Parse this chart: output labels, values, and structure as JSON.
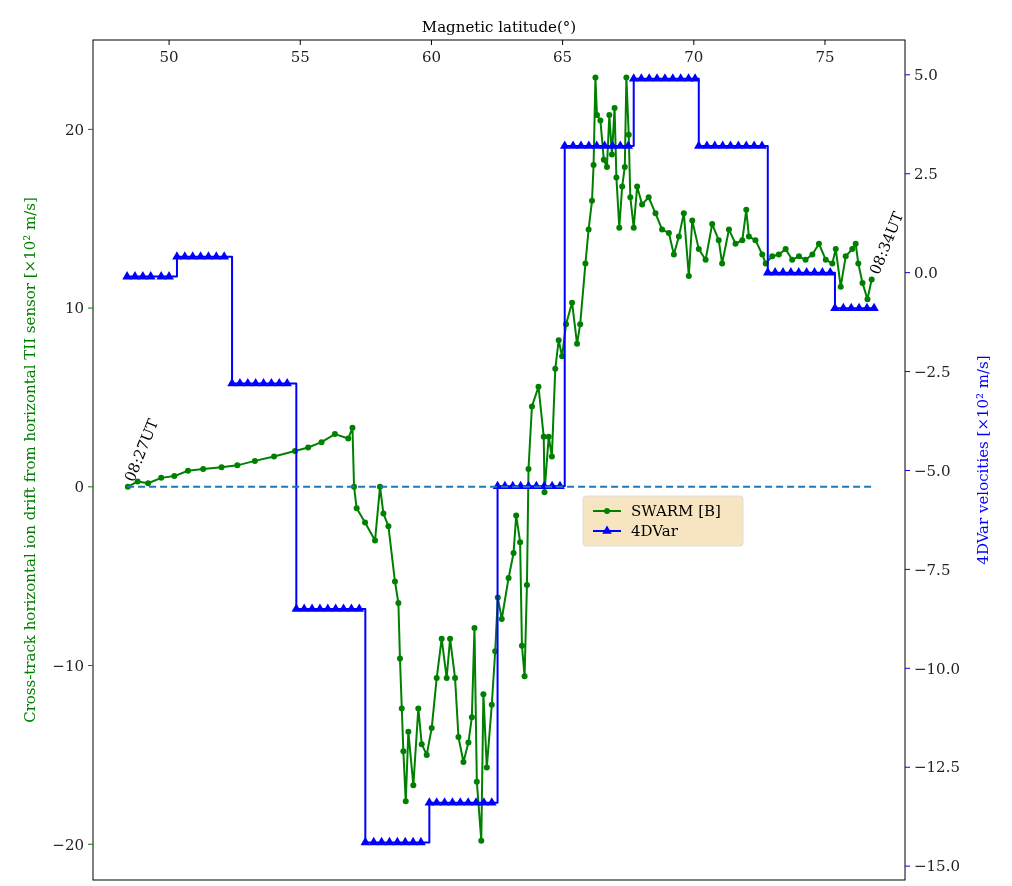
{
  "chart_data": {
    "type": "line",
    "xlabel": "Magnetic latitude(°)",
    "ylabel": "Cross-track horizontal ion drift from horizontal TII sensor [×10² m/s]",
    "y2label": "4DVar velocities [×10² m/s]",
    "xlim": [
      47.1,
      78.05
    ],
    "xticks": [
      50,
      55,
      60,
      65,
      70,
      75
    ],
    "ylim": [
      -22,
      25
    ],
    "yticks": [
      {
        "value": -20,
        "label": "−20"
      },
      {
        "value": -10,
        "label": "−10"
      },
      0,
      10,
      20
    ],
    "y2lim": [
      -15.35,
      5.88
    ],
    "y2ticks": [
      {
        "value": -15,
        "label": "−15.0"
      },
      {
        "value": -12.5,
        "label": "−12.5"
      },
      {
        "value": -10,
        "label": "−10.0"
      },
      {
        "value": -7.5,
        "label": "−7.5"
      },
      {
        "value": -5,
        "label": "−5.0"
      },
      {
        "value": -2.5,
        "label": "−2.5"
      },
      {
        "value": 0,
        "label": "0.0"
      },
      2.5,
      {
        "value": 5,
        "label": "5.0"
      }
    ],
    "legend": "center",
    "annotations": [
      {
        "text": "08:27UT",
        "x": 48.5,
        "y": 0
      },
      {
        "text": "08:34UT",
        "x": 76.9,
        "y": 11.6
      }
    ],
    "series": [
      {
        "name": "SWARM [B]",
        "color": "#008000",
        "marker": "circle",
        "x": [
          48.43,
          48.8,
          49.2,
          49.7,
          50.2,
          50.72,
          51.3,
          52.0,
          52.6,
          53.27,
          54.0,
          54.8,
          55.3,
          55.81,
          56.32,
          56.83,
          56.99,
          57.05,
          57.15,
          57.47,
          57.85,
          58.04,
          58.17,
          58.36,
          58.61,
          58.74,
          58.8,
          58.87,
          58.93,
          59.02,
          59.12,
          59.31,
          59.5,
          59.63,
          59.82,
          60.01,
          60.2,
          60.39,
          60.58,
          60.71,
          60.9,
          61.03,
          61.22,
          61.41,
          61.54,
          61.64,
          61.73,
          61.9,
          61.98,
          62.11,
          62.3,
          62.43,
          62.53,
          62.68,
          62.94,
          63.13,
          63.23,
          63.38,
          63.45,
          63.55,
          63.64,
          63.7,
          63.83,
          64.08,
          64.28,
          64.31,
          64.47,
          64.59,
          64.72,
          64.85,
          64.98,
          65.13,
          65.36,
          65.55,
          65.67,
          65.87,
          65.99,
          66.12,
          66.18,
          66.25,
          66.31,
          66.44,
          66.57,
          66.69,
          66.78,
          66.88,
          66.98,
          67.05,
          67.16,
          67.27,
          67.37,
          67.43,
          67.52,
          67.58,
          67.71,
          67.84,
          68.03,
          68.28,
          68.54,
          68.79,
          69.05,
          69.24,
          69.43,
          69.62,
          69.81,
          69.94,
          70.19,
          70.45,
          70.7,
          70.95,
          71.08,
          71.34,
          71.59,
          71.85,
          72.0,
          72.1,
          72.35,
          72.61,
          72.74,
          72.99,
          73.24,
          73.5,
          73.75,
          74.01,
          74.26,
          74.52,
          74.77,
          75.03,
          75.28,
          75.41,
          75.6,
          75.79,
          76.04,
          76.17,
          76.27,
          76.43,
          76.62,
          76.78
        ],
        "values": [
          0.0,
          0.3,
          0.2,
          0.5,
          0.6,
          0.9,
          1.0,
          1.1,
          1.2,
          1.45,
          1.7,
          2.0,
          2.2,
          2.5,
          2.95,
          2.7,
          3.3,
          0.0,
          -1.2,
          -2.0,
          -3.0,
          0.0,
          -1.5,
          -2.2,
          -5.3,
          -6.5,
          -9.6,
          -12.4,
          -14.8,
          -17.6,
          -13.7,
          -16.7,
          -12.4,
          -14.4,
          -15.0,
          -13.5,
          -10.7,
          -8.5,
          -10.7,
          -8.5,
          -10.7,
          -14.0,
          -15.4,
          -14.3,
          -12.9,
          -7.9,
          -16.5,
          -19.8,
          -11.6,
          -15.7,
          -12.2,
          -9.2,
          -6.2,
          -7.4,
          -5.1,
          -3.7,
          -1.6,
          -3.1,
          -8.9,
          -10.6,
          -5.5,
          1.0,
          4.5,
          5.6,
          2.8,
          -0.3,
          2.8,
          1.7,
          6.6,
          8.2,
          7.3,
          9.1,
          10.3,
          8.0,
          9.1,
          12.5,
          14.4,
          16.0,
          18.0,
          22.9,
          20.8,
          20.5,
          18.3,
          17.9,
          20.8,
          18.6,
          21.2,
          17.3,
          14.5,
          16.8,
          17.9,
          22.9,
          19.7,
          16.2,
          14.5,
          16.8,
          15.8,
          16.2,
          15.3,
          14.4,
          14.2,
          13.0,
          14.0,
          15.3,
          11.8,
          14.9,
          13.3,
          12.7,
          14.7,
          13.8,
          12.5,
          14.4,
          13.6,
          13.8,
          15.5,
          14.0,
          13.8,
          13.0,
          12.5,
          12.9,
          13.0,
          13.3,
          12.7,
          12.9,
          12.7,
          13.0,
          13.6,
          12.7,
          12.5,
          13.3,
          11.2,
          12.9,
          13.3,
          13.6,
          12.5,
          11.4,
          10.5,
          11.6
        ]
      },
      {
        "name": "4DVar",
        "type": "step",
        "axis": "y2",
        "color": "#0000ff",
        "marker": "triangle",
        "x": [
          48.4,
          48.7,
          49.0,
          49.3,
          49.7,
          50.0,
          50.3,
          50.6,
          50.9,
          51.2,
          51.5,
          51.8,
          52.1,
          52.4,
          52.7,
          53.0,
          53.3,
          53.6,
          53.9,
          54.2,
          54.5,
          54.85,
          55.15,
          55.45,
          55.75,
          56.05,
          56.35,
          56.65,
          56.95,
          57.25,
          57.48,
          57.8,
          58.1,
          58.4,
          58.7,
          59.0,
          59.3,
          59.6,
          59.92,
          60.2,
          60.5,
          60.8,
          61.1,
          61.4,
          61.7,
          62.0,
          62.3,
          62.52,
          62.8,
          63.1,
          63.4,
          63.7,
          64.0,
          64.3,
          64.6,
          64.9,
          65.08,
          65.4,
          65.7,
          66.0,
          66.3,
          66.6,
          66.9,
          67.2,
          67.5,
          67.71,
          68.0,
          68.3,
          68.6,
          68.9,
          69.2,
          69.5,
          69.8,
          70.05,
          70.19,
          70.5,
          70.8,
          71.1,
          71.4,
          71.7,
          72.0,
          72.3,
          72.6,
          72.82,
          73.1,
          73.4,
          73.7,
          74.0,
          74.3,
          74.6,
          74.9,
          75.2,
          75.38,
          75.7,
          76.0,
          76.3,
          76.6,
          76.87
        ],
        "values": [
          -0.1,
          -0.1,
          -0.1,
          -0.1,
          -0.1,
          -0.1,
          0.4,
          0.4,
          0.4,
          0.4,
          0.4,
          0.4,
          0.4,
          -2.8,
          -2.8,
          -2.8,
          -2.8,
          -2.8,
          -2.8,
          -2.8,
          -2.8,
          -8.5,
          -8.5,
          -8.5,
          -8.5,
          -8.5,
          -8.5,
          -8.5,
          -8.5,
          -8.5,
          -14.4,
          -14.4,
          -14.4,
          -14.4,
          -14.4,
          -14.4,
          -14.4,
          -14.4,
          -13.4,
          -13.4,
          -13.4,
          -13.4,
          -13.4,
          -13.4,
          -13.4,
          -13.4,
          -13.4,
          -5.4,
          -5.4,
          -5.4,
          -5.4,
          -5.4,
          -5.4,
          -5.4,
          -5.4,
          -5.4,
          3.2,
          3.2,
          3.2,
          3.2,
          3.2,
          3.2,
          3.2,
          3.2,
          3.2,
          4.9,
          4.9,
          4.9,
          4.9,
          4.9,
          4.9,
          4.9,
          4.9,
          4.9,
          3.2,
          3.2,
          3.2,
          3.2,
          3.2,
          3.2,
          3.2,
          3.2,
          3.2,
          0.0,
          0.0,
          0.0,
          0.0,
          0.0,
          0.0,
          0.0,
          0.0,
          0.0,
          -0.9,
          -0.9,
          -0.9,
          -0.9,
          -0.9,
          -0.9
        ]
      },
      {
        "type": "line",
        "color": "#1f77b4",
        "line_style": "dashed",
        "marker": "none",
        "x": [
          48.4,
          76.9
        ],
        "values": [
          0,
          0
        ]
      }
    ]
  }
}
